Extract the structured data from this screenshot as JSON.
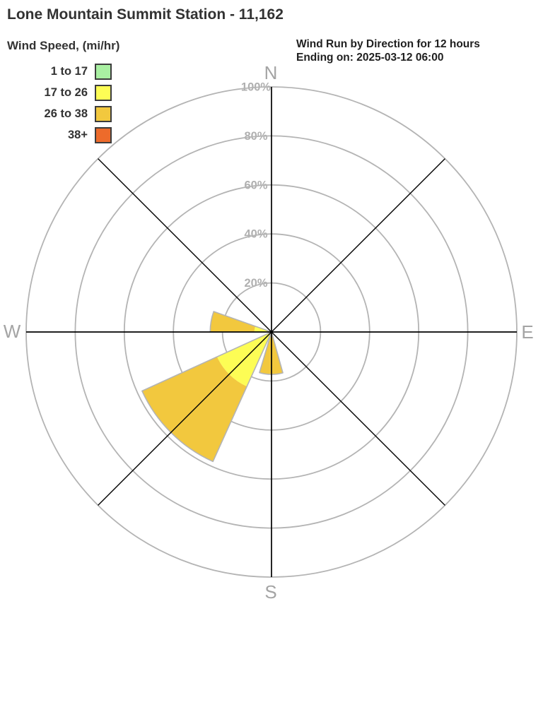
{
  "title": "Lone Mountain Summit Station - 11,162",
  "subtitle": {
    "line1": "Wind Run by Direction for 12 hours",
    "line2": "Ending on: 2025-03-12 06:00"
  },
  "legend": {
    "title": "Wind Speed, (mi/hr)",
    "items": [
      {
        "label": "1 to 17",
        "color": "#a9f0a2"
      },
      {
        "label": "17 to 26",
        "color": "#fdfd55"
      },
      {
        "label": "26 to 38",
        "color": "#f2c83e"
      },
      {
        "label": "38+",
        "color": "#ed6b2b"
      }
    ]
  },
  "chart_data": {
    "type": "wind_rose",
    "title": "Wind Run by Direction for 12 hours",
    "ending_on": "2025-03-12 06:00",
    "units": "% of wind run",
    "rings_percent": [
      20,
      40,
      60,
      80,
      100
    ],
    "ring_labels": [
      "20%",
      "40%",
      "60%",
      "80%",
      "100%"
    ],
    "compass_labels": {
      "n": "N",
      "e": "E",
      "s": "S",
      "w": "W"
    },
    "speed_bins": [
      {
        "label": "1 to 17",
        "color": "#a9f0a2"
      },
      {
        "label": "17 to 26",
        "color": "#fdfd55"
      },
      {
        "label": "26 to 38",
        "color": "#f2c83e"
      },
      {
        "label": "38+",
        "color": "#ed6b2b"
      }
    ],
    "petals": [
      {
        "direction": "W-WNW",
        "start_deg": 270.0,
        "end_deg": 289.5,
        "segments": [
          {
            "bin": "17 to 26",
            "from_pct": 0,
            "to_pct": 7
          },
          {
            "bin": "26 to 38",
            "from_pct": 7,
            "to_pct": 25
          }
        ]
      },
      {
        "direction": "SW",
        "start_deg": 204.3,
        "end_deg": 245.5,
        "segments": [
          {
            "bin": "17 to 26",
            "from_pct": 0,
            "to_pct": 24.4
          },
          {
            "bin": "26 to 38",
            "from_pct": 24.4,
            "to_pct": 58
          }
        ]
      },
      {
        "direction": "S",
        "start_deg": 164.5,
        "end_deg": 196.5,
        "segments": [
          {
            "bin": "26 to 38",
            "from_pct": 0,
            "to_pct": 17.3
          }
        ]
      }
    ],
    "style": {
      "ring_color": "#b4b4b4",
      "axis_color": "#000000",
      "petal_outline_color": "#b4b4b4",
      "compass_label_color": "#a4a4a4",
      "ring_label_color": "#b0b0b0"
    }
  }
}
